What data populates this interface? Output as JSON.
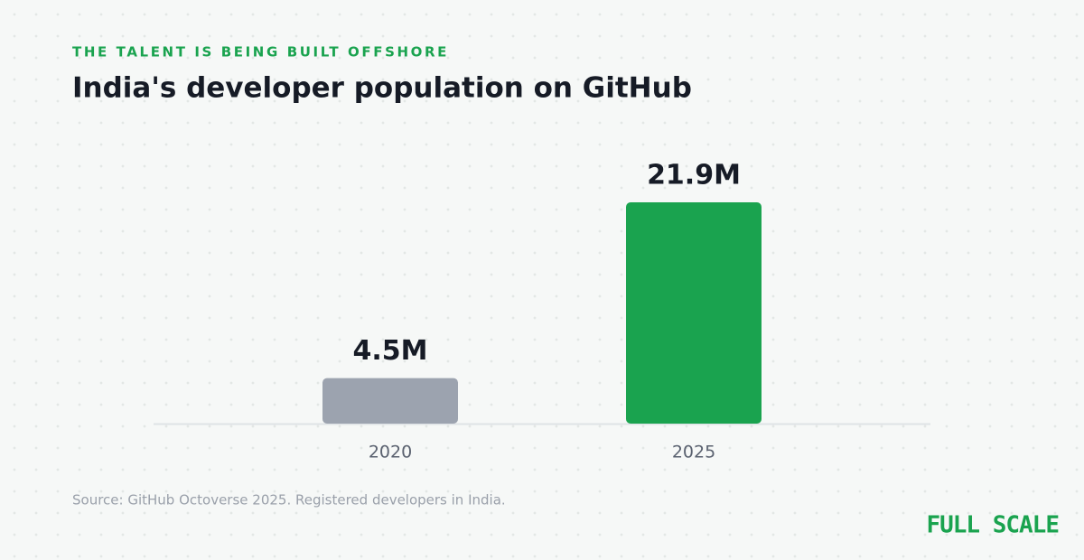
{
  "chart_data": {
    "type": "bar",
    "kicker": "THE TALENT IS BEING BUILT OFFSHORE",
    "title": "India's developer population on GitHub",
    "categories": [
      "2020",
      "2025"
    ],
    "values": [
      4.5,
      21.9
    ],
    "value_labels": [
      "4.5M",
      "21.9M"
    ],
    "colors": [
      "#9ca3af",
      "#1aa34f"
    ],
    "source": "Source: GitHub Octoverse 2025. Registered developers in India.",
    "brand": "FULL SCALE"
  }
}
